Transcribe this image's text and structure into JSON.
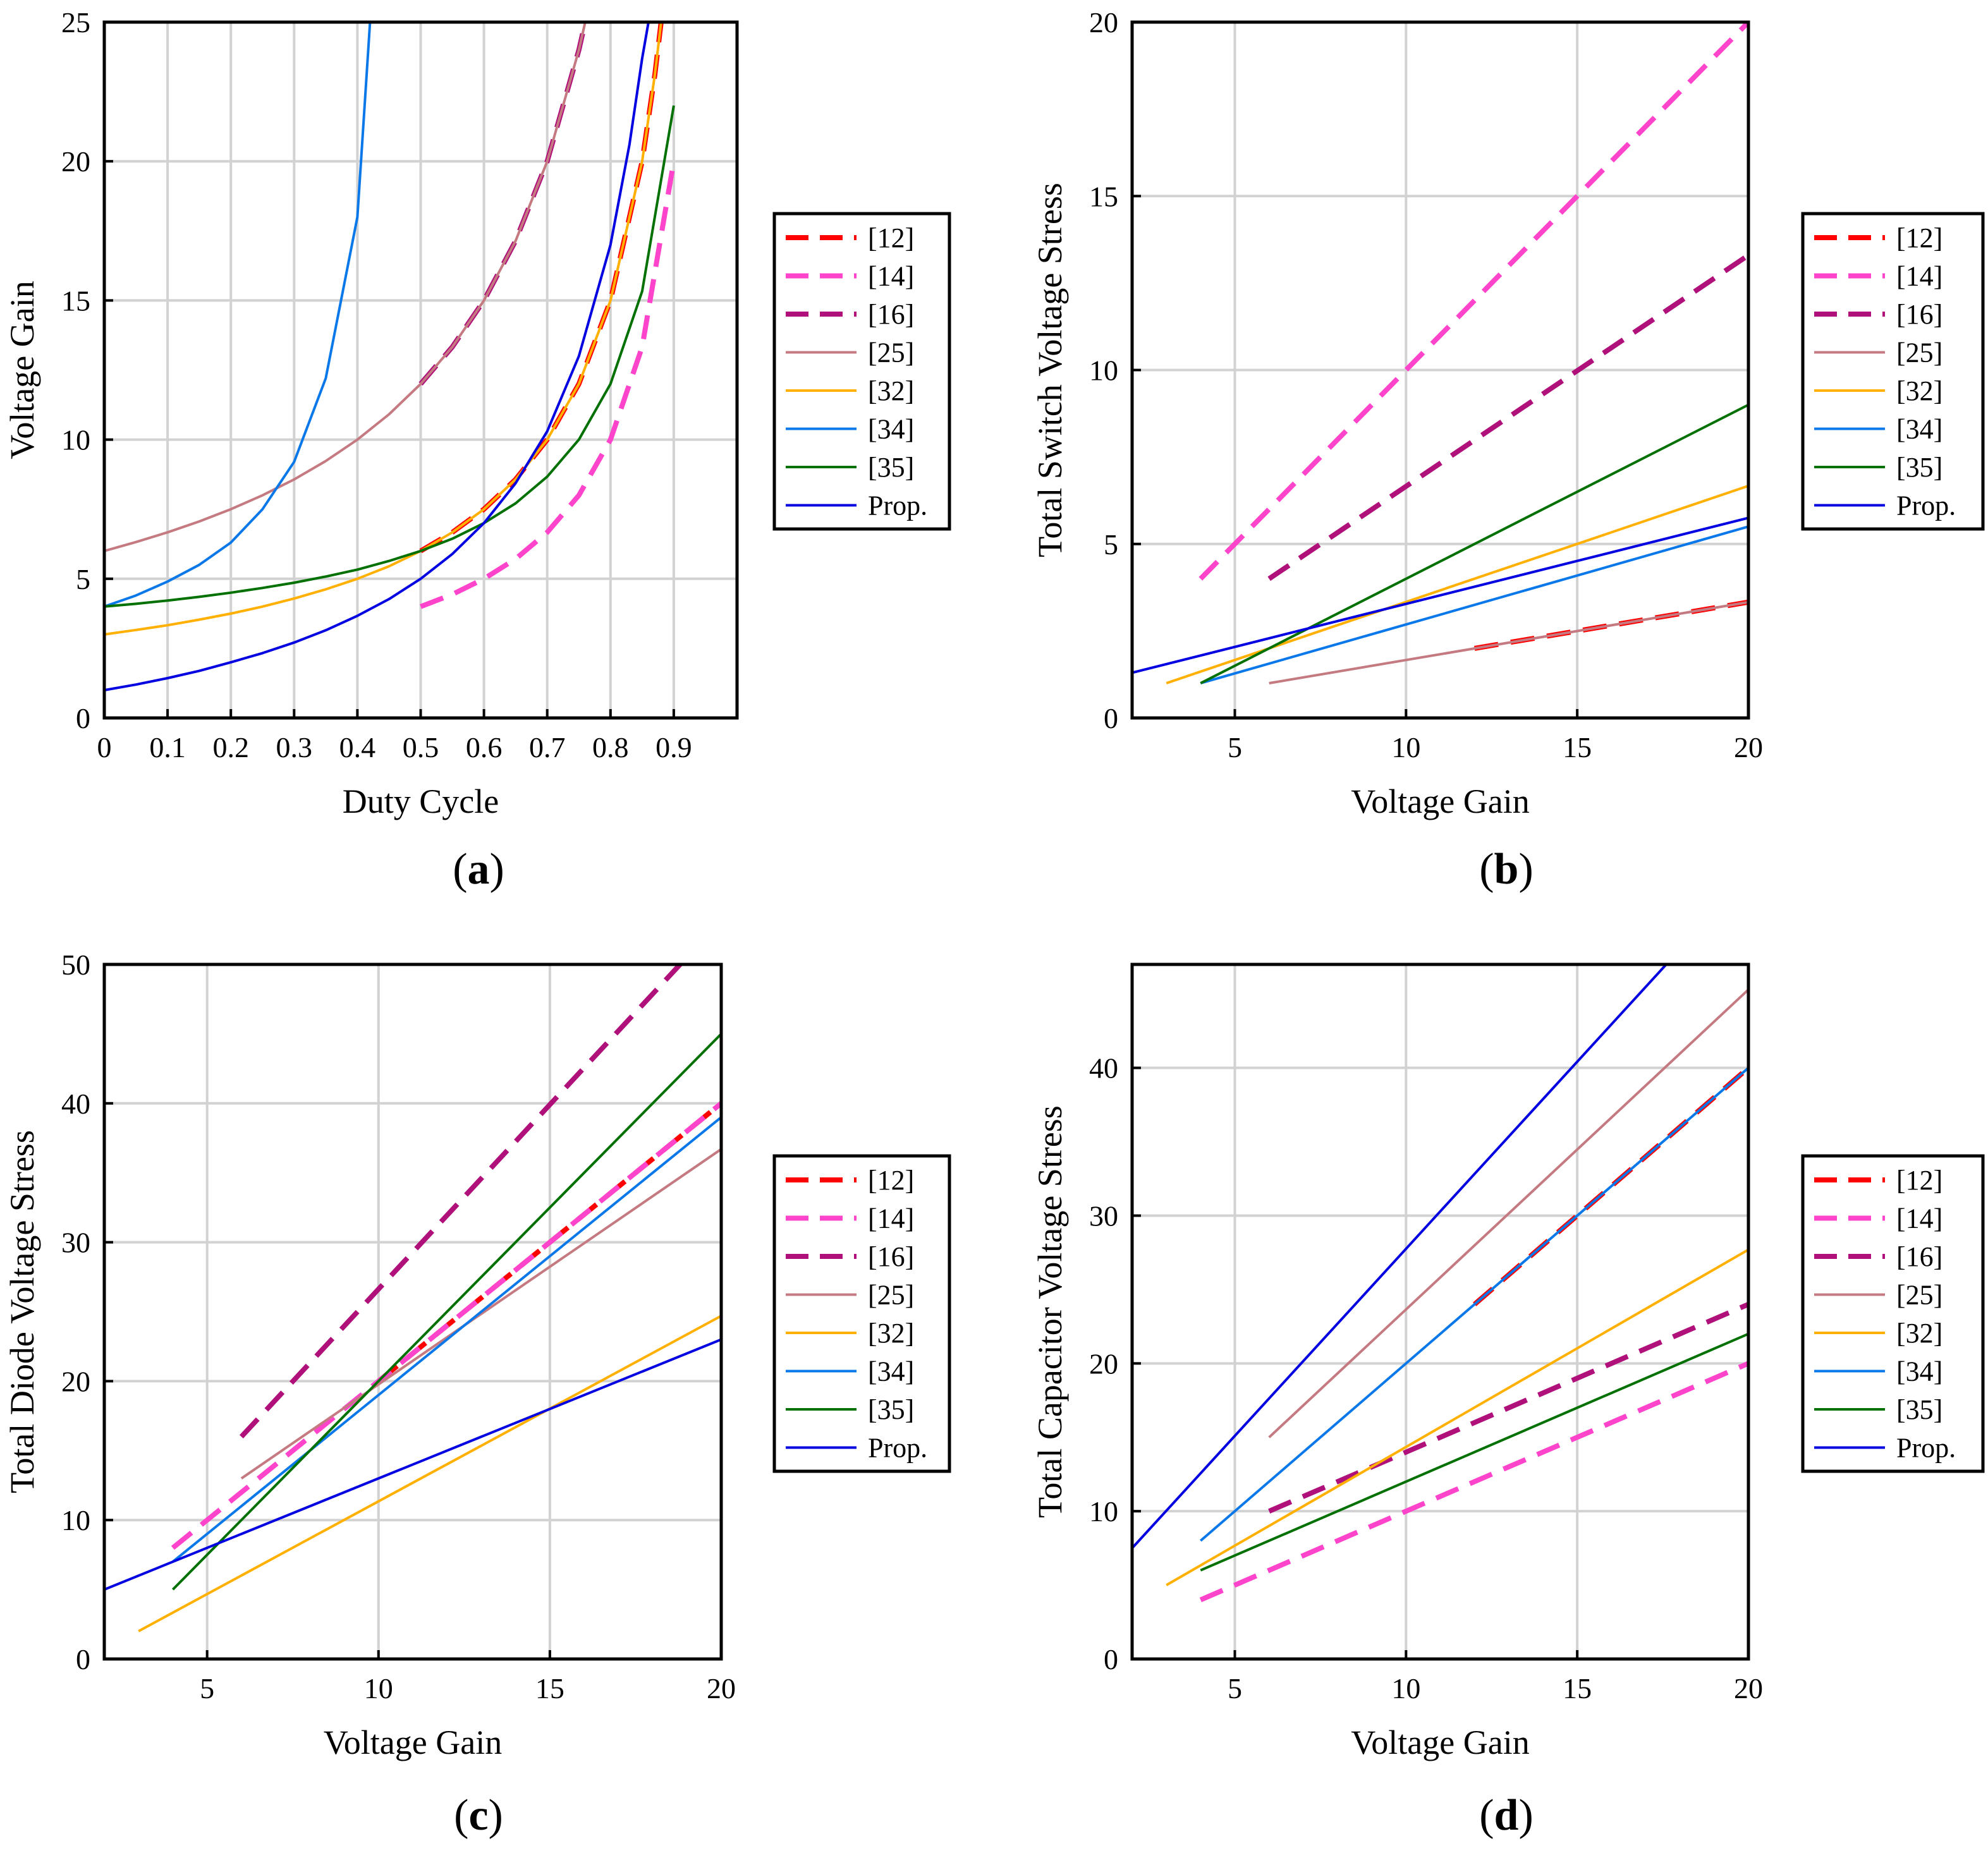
{
  "series_styles": [
    {
      "name": "[12]",
      "color": "#ff0000",
      "dashed": true
    },
    {
      "name": "[14]",
      "color": "#ff44cc",
      "dashed": true
    },
    {
      "name": "[16]",
      "color": "#b0107a",
      "dashed": true
    },
    {
      "name": "[25]",
      "color": "#c47a80",
      "dashed": false
    },
    {
      "name": "[32]",
      "color": "#ffb000",
      "dashed": false
    },
    {
      "name": "[34]",
      "color": "#0a78e8",
      "dashed": false
    },
    {
      "name": "[35]",
      "color": "#007000",
      "dashed": false
    },
    {
      "name": "Prop.",
      "color": "#0000e0",
      "dashed": false
    }
  ],
  "chart_data": [
    {
      "id": "a",
      "type": "line",
      "panel_label": "(a)",
      "xlabel": "Duty Cycle",
      "ylabel": "Voltage Gain",
      "xlim": [
        0,
        1
      ],
      "ylim": [
        0,
        25
      ],
      "xticks": [
        0,
        0.1,
        0.2,
        0.3,
        0.4,
        0.5,
        0.6,
        0.7,
        0.8,
        0.9
      ],
      "xtick_labels": [
        "0",
        "0.1",
        "0.2",
        "0.3",
        "0.4",
        "0.5",
        "0.6",
        "0.7",
        "0.8",
        "0.9"
      ],
      "yticks": [
        0,
        5,
        10,
        15,
        20,
        25
      ],
      "ytick_labels": [
        "0",
        "5",
        "10",
        "15",
        "20",
        "25"
      ],
      "grid": true,
      "legend_position": "right",
      "series": [
        {
          "name": "[12]",
          "x": [
            0.5,
            0.55,
            0.6,
            0.65,
            0.7,
            0.75,
            0.8,
            0.85,
            0.87,
            0.88
          ],
          "y": [
            6,
            6.67,
            7.5,
            8.57,
            10,
            12,
            15,
            20,
            23.1,
            25
          ]
        },
        {
          "name": "[14]",
          "x": [
            0.5,
            0.55,
            0.6,
            0.65,
            0.7,
            0.75,
            0.8,
            0.85,
            0.9
          ],
          "y": [
            4,
            4.44,
            5,
            5.71,
            6.67,
            8,
            10,
            13.33,
            20
          ]
        },
        {
          "name": "[16]",
          "x": [
            0.5,
            0.55,
            0.6,
            0.65,
            0.7,
            0.75,
            0.76
          ],
          "y": [
            12,
            13.33,
            15,
            17.14,
            20,
            24,
            25
          ]
        },
        {
          "name": "[25]",
          "x": [
            0,
            0.05,
            0.1,
            0.15,
            0.2,
            0.25,
            0.3,
            0.35,
            0.4,
            0.45,
            0.5,
            0.55,
            0.6,
            0.65,
            0.7,
            0.75,
            0.76
          ],
          "y": [
            6,
            6.32,
            6.67,
            7.06,
            7.5,
            8,
            8.57,
            9.23,
            10,
            10.91,
            12,
            13.33,
            15,
            17.14,
            20,
            24,
            25
          ]
        },
        {
          "name": "[32]",
          "x": [
            0,
            0.05,
            0.1,
            0.15,
            0.2,
            0.25,
            0.3,
            0.35,
            0.4,
            0.45,
            0.5,
            0.55,
            0.6,
            0.65,
            0.7,
            0.75,
            0.8,
            0.85,
            0.87,
            0.88
          ],
          "y": [
            3,
            3.16,
            3.33,
            3.53,
            3.75,
            4,
            4.29,
            4.62,
            5,
            5.45,
            6,
            6.67,
            7.5,
            8.57,
            10,
            12,
            15,
            20,
            23.1,
            25
          ]
        },
        {
          "name": "[34]",
          "x": [
            0,
            0.05,
            0.1,
            0.15,
            0.2,
            0.25,
            0.3,
            0.35,
            0.4,
            0.42
          ],
          "y": [
            4,
            4.4,
            4.9,
            5.5,
            6.3,
            7.5,
            9.2,
            12.2,
            18,
            25
          ]
        },
        {
          "name": "[35]",
          "x": [
            0,
            0.05,
            0.1,
            0.15,
            0.2,
            0.25,
            0.3,
            0.35,
            0.4,
            0.45,
            0.5,
            0.55,
            0.6,
            0.65,
            0.7,
            0.75,
            0.8,
            0.85,
            0.9
          ],
          "y": [
            4,
            4.1,
            4.22,
            4.35,
            4.5,
            4.67,
            4.86,
            5.08,
            5.33,
            5.64,
            6,
            6.44,
            7,
            7.71,
            8.67,
            10,
            12,
            15.33,
            22
          ]
        },
        {
          "name": "Prop.",
          "x": [
            0,
            0.05,
            0.1,
            0.15,
            0.2,
            0.25,
            0.3,
            0.35,
            0.4,
            0.45,
            0.5,
            0.55,
            0.6,
            0.65,
            0.7,
            0.75,
            0.8,
            0.83,
            0.85,
            0.86
          ],
          "y": [
            1,
            1.2,
            1.43,
            1.69,
            2,
            2.33,
            2.71,
            3.15,
            3.67,
            4.27,
            5,
            5.89,
            7,
            8.43,
            10.3,
            13,
            17,
            20.6,
            23.7,
            25
          ]
        }
      ]
    },
    {
      "id": "b",
      "type": "line",
      "panel_label": "(b)",
      "xlabel": "Voltage Gain",
      "ylabel": "Total Switch Voltage Stress",
      "xlim": [
        2,
        20
      ],
      "ylim": [
        0,
        20
      ],
      "xticks": [
        5,
        10,
        15,
        20
      ],
      "xtick_labels": [
        "5",
        "10",
        "15",
        "20"
      ],
      "yticks": [
        0,
        5,
        10,
        15,
        20
      ],
      "ytick_labels": [
        "0",
        "5",
        "10",
        "15",
        "20"
      ],
      "grid": true,
      "legend_position": "right",
      "series": [
        {
          "name": "[12]",
          "x": [
            12,
            20
          ],
          "y": [
            2,
            3.33
          ]
        },
        {
          "name": "[14]",
          "x": [
            4,
            20
          ],
          "y": [
            4,
            20
          ]
        },
        {
          "name": "[16]",
          "x": [
            6,
            20
          ],
          "y": [
            4,
            13.3
          ]
        },
        {
          "name": "[25]",
          "x": [
            6,
            20
          ],
          "y": [
            1,
            3.33
          ]
        },
        {
          "name": "[32]",
          "x": [
            3,
            20
          ],
          "y": [
            1,
            6.67
          ]
        },
        {
          "name": "[34]",
          "x": [
            4,
            20
          ],
          "y": [
            1,
            5.5
          ]
        },
        {
          "name": "[35]",
          "x": [
            4,
            20
          ],
          "y": [
            1,
            9
          ]
        },
        {
          "name": "Prop.",
          "x": [
            2,
            20
          ],
          "y": [
            1.3,
            5.75
          ]
        }
      ]
    },
    {
      "id": "c",
      "type": "line",
      "panel_label": "(c)",
      "xlabel": "Voltage Gain",
      "ylabel": "Total Diode Voltage Stress",
      "xlim": [
        2,
        20
      ],
      "ylim": [
        0,
        50
      ],
      "xticks": [
        5,
        10,
        15,
        20
      ],
      "xtick_labels": [
        "5",
        "10",
        "15",
        "20"
      ],
      "yticks": [
        0,
        10,
        20,
        30,
        40,
        50
      ],
      "ytick_labels": [
        "0",
        "10",
        "20",
        "30",
        "40",
        "50"
      ],
      "grid": true,
      "legend_position": "right",
      "series": [
        {
          "name": "[12]",
          "x": [
            10,
            20
          ],
          "y": [
            20,
            40
          ]
        },
        {
          "name": "[14]",
          "x": [
            4,
            20
          ],
          "y": [
            8,
            40
          ]
        },
        {
          "name": "[16]",
          "x": [
            6,
            18.8
          ],
          "y": [
            16,
            50
          ]
        },
        {
          "name": "[25]",
          "x": [
            6,
            20
          ],
          "y": [
            13,
            36.7
          ]
        },
        {
          "name": "[32]",
          "x": [
            3,
            20
          ],
          "y": [
            2,
            24.7
          ]
        },
        {
          "name": "[34]",
          "x": [
            4,
            20
          ],
          "y": [
            7,
            39
          ]
        },
        {
          "name": "[35]",
          "x": [
            4,
            20
          ],
          "y": [
            5,
            45
          ]
        },
        {
          "name": "Prop.",
          "x": [
            2,
            20
          ],
          "y": [
            5,
            23
          ]
        }
      ]
    },
    {
      "id": "d",
      "type": "line",
      "panel_label": "(d)",
      "xlabel": "Voltage Gain",
      "ylabel": "Total Capacitor Voltage Stress",
      "xlim": [
        2,
        20
      ],
      "ylim": [
        0,
        47
      ],
      "xticks": [
        5,
        10,
        15,
        20
      ],
      "xtick_labels": [
        "5",
        "10",
        "15",
        "20"
      ],
      "yticks": [
        0,
        10,
        20,
        30,
        40
      ],
      "ytick_labels": [
        "0",
        "10",
        "20",
        "30",
        "40"
      ],
      "grid": true,
      "legend_position": "right",
      "series": [
        {
          "name": "[12]",
          "x": [
            12,
            20
          ],
          "y": [
            24,
            40
          ]
        },
        {
          "name": "[14]",
          "x": [
            4,
            20
          ],
          "y": [
            4,
            20
          ]
        },
        {
          "name": "[16]",
          "x": [
            6,
            20
          ],
          "y": [
            10,
            24
          ]
        },
        {
          "name": "[25]",
          "x": [
            6,
            20
          ],
          "y": [
            15,
            45.3
          ]
        },
        {
          "name": "[32]",
          "x": [
            3,
            20
          ],
          "y": [
            5,
            27.7
          ]
        },
        {
          "name": "[34]",
          "x": [
            4,
            20
          ],
          "y": [
            8,
            40
          ]
        },
        {
          "name": "[35]",
          "x": [
            4,
            20
          ],
          "y": [
            6,
            22
          ]
        },
        {
          "name": "Prop.",
          "x": [
            2,
            17.6
          ],
          "y": [
            7.5,
            47
          ]
        }
      ]
    }
  ]
}
